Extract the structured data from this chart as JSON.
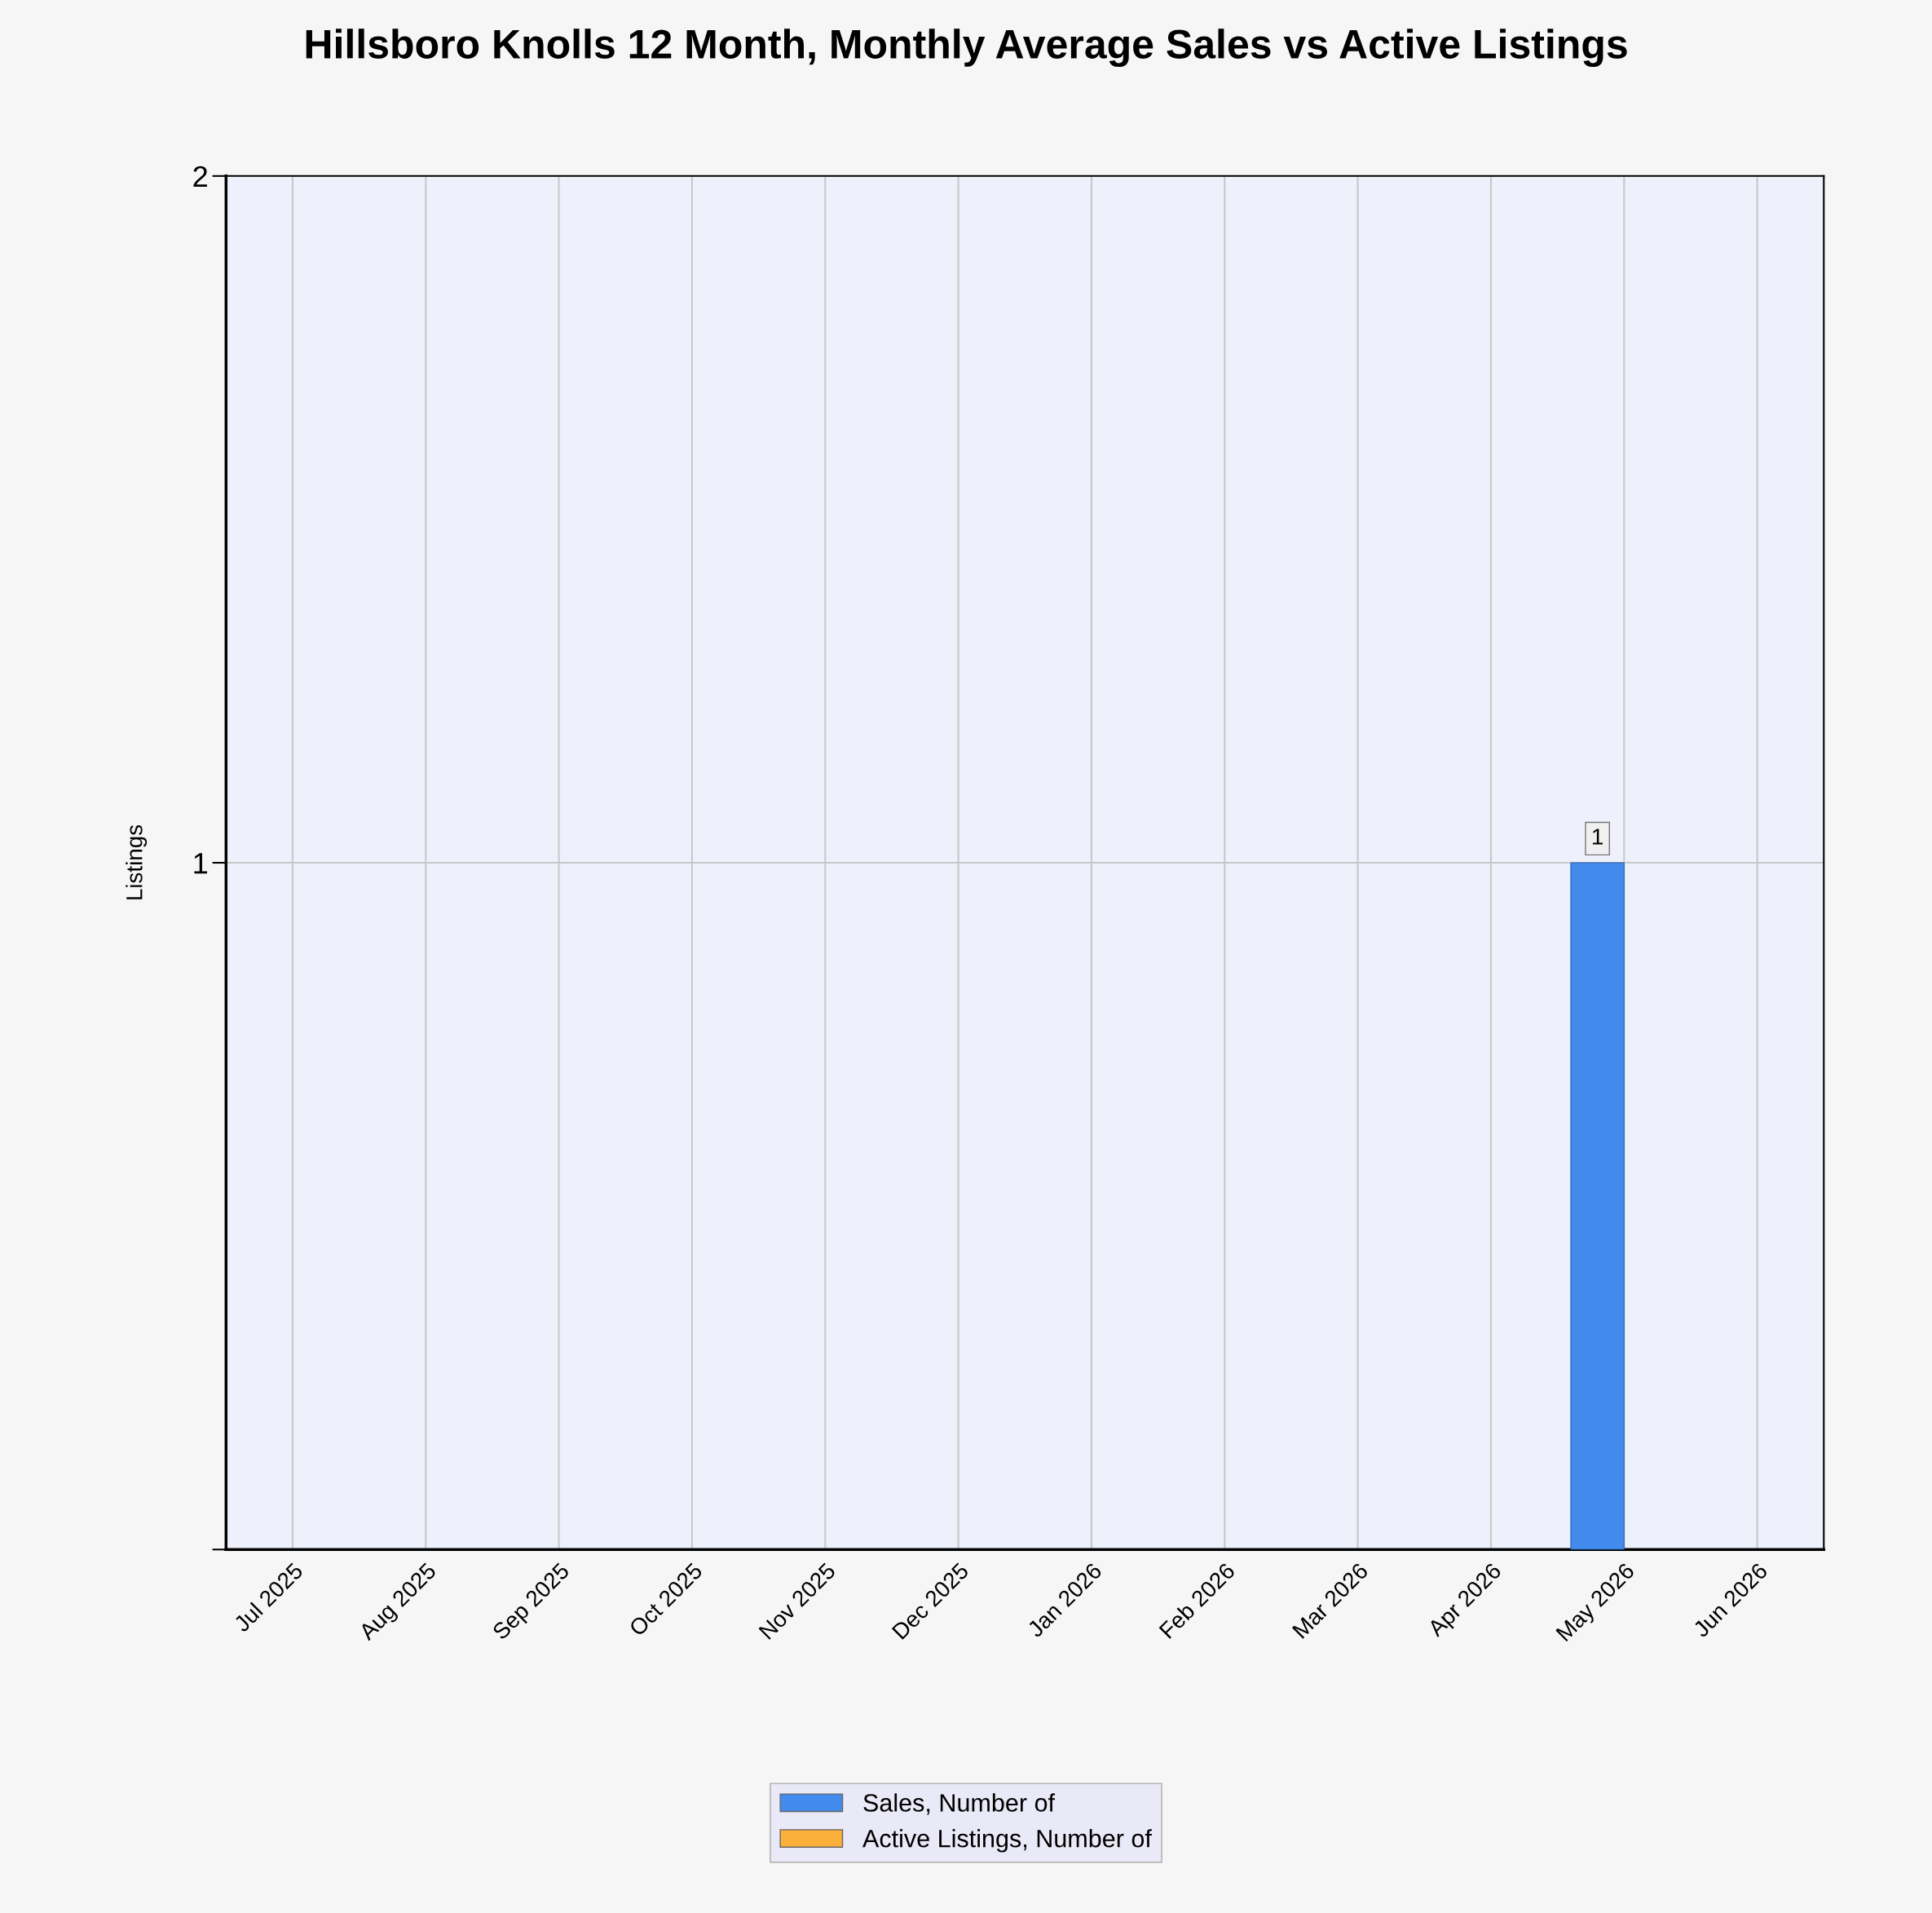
{
  "chart_data": {
    "type": "bar",
    "title": "Hillsboro Knolls 12 Month, Monthly Average Sales vs Active Listings",
    "ylabel": "Listings",
    "categories": [
      "Jul 2025",
      "Aug 2025",
      "Sep 2025",
      "Oct 2025",
      "Nov 2025",
      "Dec 2025",
      "Jan 2026",
      "Feb 2026",
      "Mar 2026",
      "Apr 2026",
      "May 2026",
      "Jun 2026"
    ],
    "series": [
      {
        "name": "Sales, Number of",
        "color": "#428bed",
        "values": [
          null,
          null,
          null,
          null,
          null,
          null,
          null,
          null,
          null,
          null,
          1,
          null
        ],
        "value_labels": [
          null,
          null,
          null,
          null,
          null,
          null,
          null,
          null,
          null,
          null,
          "1",
          null
        ]
      },
      {
        "name": "Active Listings, Number of",
        "color": "#fbb03b",
        "values": [
          null,
          null,
          null,
          null,
          null,
          null,
          null,
          null,
          null,
          null,
          null,
          null
        ]
      }
    ],
    "ylim": [
      0,
      2
    ],
    "yticks": [
      {
        "value": 0,
        "label": null
      },
      1,
      2
    ],
    "grid": true,
    "legend": "bottom"
  }
}
